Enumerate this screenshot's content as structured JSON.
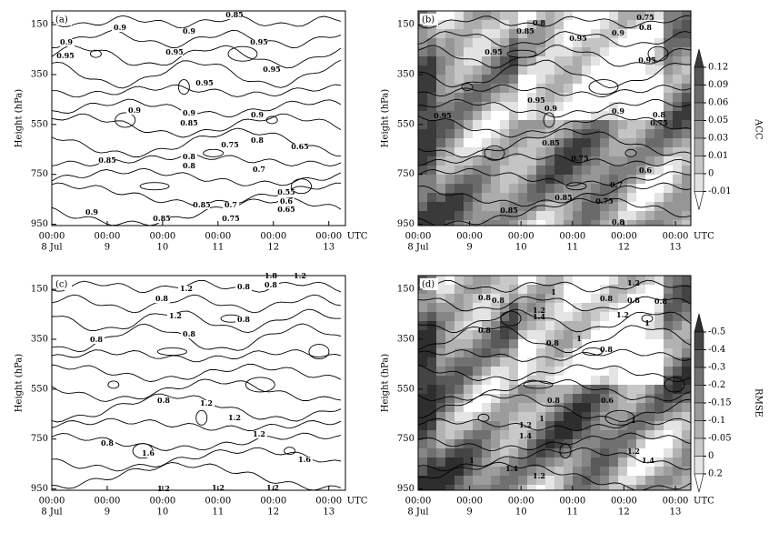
{
  "chart_data": [
    {
      "type": "contour",
      "panel_label": "(a)",
      "ylabel": "Height (hPa)",
      "ylim": [
        955,
        95
      ],
      "yticks": [
        150,
        350,
        550,
        750,
        950
      ],
      "xlim": [
        8,
        13.3
      ],
      "xticks": [
        {
          "value": 8,
          "label": "8 Jul"
        },
        {
          "value": 9,
          "label": "9"
        },
        {
          "value": 10,
          "label": "10"
        },
        {
          "value": 11,
          "label": "11"
        },
        {
          "value": 12,
          "label": "12"
        },
        {
          "value": 13,
          "label": "13"
        }
      ],
      "time_label": "00:00",
      "x_unit": "UTC",
      "contour_labels": [
        "0.85",
        "0.9",
        "0.9",
        "0.95",
        "0.9",
        "0.95",
        "0.95",
        "0.95",
        "0.95",
        "0.9",
        "0.9",
        "0.85",
        "0.9",
        "0.8",
        "0.75",
        "0.65",
        "0.85",
        "0.8",
        "0.8",
        "0.7",
        "0.55",
        "0.6",
        "0.65",
        "0.85",
        "0.7",
        "0.75",
        "0.9",
        "0.85"
      ]
    },
    {
      "type": "contour",
      "panel_label": "(b)",
      "ylabel": "Height (hPa)",
      "ylim": [
        955,
        95
      ],
      "yticks": [
        150,
        350,
        550,
        750,
        950
      ],
      "xlim": [
        8,
        13.3
      ],
      "xticks": [
        {
          "value": 8,
          "label": "8 Jul"
        },
        {
          "value": 9,
          "label": "9"
        },
        {
          "value": 10,
          "label": "10"
        },
        {
          "value": 11,
          "label": "11"
        },
        {
          "value": 12,
          "label": "12"
        },
        {
          "value": 13,
          "label": "13"
        }
      ],
      "time_label": "00:00",
      "x_unit": "UTC",
      "contour_labels": [
        "0.8",
        "0.75",
        "0.85",
        "0.9",
        "0.8",
        "0.95",
        "0.95",
        "0.95",
        "0.95",
        "0.9",
        "0.9",
        "0.95",
        "0.8",
        "0.75",
        "0.85",
        "0.75",
        "0.6",
        "0.7",
        "0.85",
        "0.75",
        "0.85",
        "0.8"
      ],
      "colorbar": {
        "label": "ACC",
        "ticks": [
          0.12,
          0.09,
          0.06,
          0.05,
          0.03,
          0.01,
          0,
          -0.01
        ],
        "colors": [
          "#3a3a3a",
          "#555555",
          "#6a6a6a",
          "#808080",
          "#969696",
          "#acacac",
          "#c4c4c4",
          "#e2e2e2",
          "#ffffff"
        ]
      }
    },
    {
      "type": "contour",
      "panel_label": "(c)",
      "ylabel": "Height (hPa)",
      "ylim": [
        955,
        95
      ],
      "yticks": [
        150,
        350,
        550,
        750,
        950
      ],
      "xlim": [
        8,
        13.3
      ],
      "xticks": [
        {
          "value": 8,
          "label": "8 Jul"
        },
        {
          "value": 9,
          "label": "9"
        },
        {
          "value": 10,
          "label": "10"
        },
        {
          "value": 11,
          "label": "11"
        },
        {
          "value": 12,
          "label": "12"
        },
        {
          "value": 13,
          "label": "13"
        }
      ],
      "time_label": "00:00",
      "x_unit": "UTC",
      "contour_labels": [
        "1.8",
        "1.2",
        "1.2",
        "0.8",
        "0.8",
        "0.8",
        "1.2",
        "0.8",
        "0.8",
        "0.8",
        "0.8",
        "0.8",
        "1.2",
        "1.2",
        "1.2",
        "1.6",
        "1.6",
        "1.2",
        "1.2",
        "1.2"
      ]
    },
    {
      "type": "contour",
      "panel_label": "(d)",
      "ylabel": "Height (hPa)",
      "ylim": [
        955,
        95
      ],
      "yticks": [
        150,
        350,
        550,
        750,
        950
      ],
      "xlim": [
        8,
        13.3
      ],
      "xticks": [
        {
          "value": 8,
          "label": "8 Jul"
        },
        {
          "value": 9,
          "label": "9"
        },
        {
          "value": 10,
          "label": "10"
        },
        {
          "value": 11,
          "label": "11"
        },
        {
          "value": 12,
          "label": "12"
        },
        {
          "value": 13,
          "label": "13"
        }
      ],
      "time_label": "00:00",
      "x_unit": "UTC",
      "contour_labels": [
        "1.2",
        "0.8",
        "0.8",
        "1",
        "0.8",
        "0.8",
        "0.8",
        "1.2",
        "1.4",
        "1.2",
        "1",
        "0.8",
        "0.8",
        "1",
        "0.8",
        "0.8",
        "0.6",
        "1",
        "1",
        "1.2",
        "1.4",
        "1.2",
        "1.4",
        "1",
        "1.4",
        "1.2"
      ],
      "colorbar": {
        "label": "RMSE",
        "ticks": [
          -0.5,
          -0.4,
          -0.3,
          -0.2,
          -0.15,
          -0.1,
          -0.05,
          0,
          0.2
        ],
        "colors": [
          "#2e2e2e",
          "#444444",
          "#5a5a5a",
          "#707070",
          "#868686",
          "#9c9c9c",
          "#b2b2b2",
          "#c8c8c8",
          "#e4e4e4",
          "#ffffff"
        ]
      }
    }
  ]
}
